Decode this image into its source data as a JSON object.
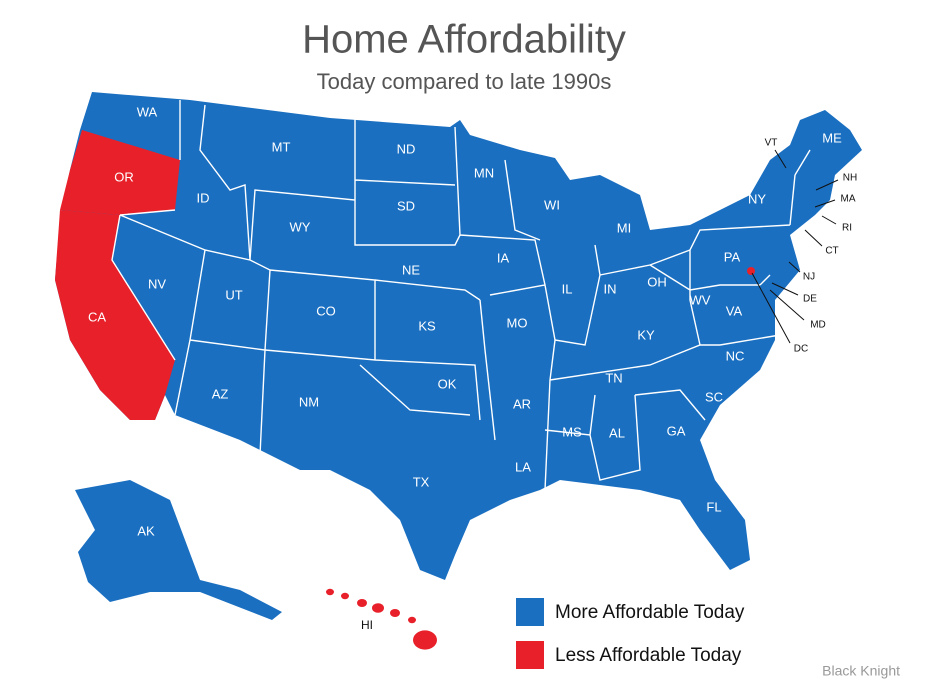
{
  "header": {
    "title": "Home Affordability",
    "subtitle": "Today compared to late 1990s"
  },
  "map": {
    "states": [
      {
        "label": "WA",
        "less_affordable": false
      },
      {
        "label": "OR",
        "less_affordable": true
      },
      {
        "label": "CA",
        "less_affordable": true
      },
      {
        "label": "NV",
        "less_affordable": false
      },
      {
        "label": "ID",
        "less_affordable": false
      },
      {
        "label": "MT",
        "less_affordable": false
      },
      {
        "label": "WY",
        "less_affordable": false
      },
      {
        "label": "UT",
        "less_affordable": false
      },
      {
        "label": "AZ",
        "less_affordable": false
      },
      {
        "label": "CO",
        "less_affordable": false
      },
      {
        "label": "NM",
        "less_affordable": false
      },
      {
        "label": "ND",
        "less_affordable": false
      },
      {
        "label": "SD",
        "less_affordable": false
      },
      {
        "label": "NE",
        "less_affordable": false
      },
      {
        "label": "KS",
        "less_affordable": false
      },
      {
        "label": "OK",
        "less_affordable": false
      },
      {
        "label": "TX",
        "less_affordable": false
      },
      {
        "label": "MN",
        "less_affordable": false
      },
      {
        "label": "IA",
        "less_affordable": false
      },
      {
        "label": "MO",
        "less_affordable": false
      },
      {
        "label": "AR",
        "less_affordable": false
      },
      {
        "label": "LA",
        "less_affordable": false
      },
      {
        "label": "WI",
        "less_affordable": false
      },
      {
        "label": "IL",
        "less_affordable": false
      },
      {
        "label": "MS",
        "less_affordable": false
      },
      {
        "label": "MI",
        "less_affordable": false
      },
      {
        "label": "IN",
        "less_affordable": false
      },
      {
        "label": "OH",
        "less_affordable": false
      },
      {
        "label": "KY",
        "less_affordable": false
      },
      {
        "label": "TN",
        "less_affordable": false
      },
      {
        "label": "AL",
        "less_affordable": false
      },
      {
        "label": "GA",
        "less_affordable": false
      },
      {
        "label": "FL",
        "less_affordable": false
      },
      {
        "label": "SC",
        "less_affordable": false
      },
      {
        "label": "NC",
        "less_affordable": false
      },
      {
        "label": "VA",
        "less_affordable": false
      },
      {
        "label": "WV",
        "less_affordable": false
      },
      {
        "label": "PA",
        "less_affordable": false
      },
      {
        "label": "NY",
        "less_affordable": false
      },
      {
        "label": "VT",
        "less_affordable": false
      },
      {
        "label": "NH",
        "less_affordable": false
      },
      {
        "label": "MA",
        "less_affordable": false
      },
      {
        "label": "RI",
        "less_affordable": false
      },
      {
        "label": "CT",
        "less_affordable": false
      },
      {
        "label": "NJ",
        "less_affordable": false
      },
      {
        "label": "DE",
        "less_affordable": false
      },
      {
        "label": "MD",
        "less_affordable": false
      },
      {
        "label": "DC",
        "less_affordable": true
      },
      {
        "label": "ME",
        "less_affordable": false
      },
      {
        "label": "AK",
        "less_affordable": false
      },
      {
        "label": "HI",
        "less_affordable": true
      }
    ]
  },
  "legend": [
    {
      "label": "More Affordable Today",
      "color": "#1a6fc1"
    },
    {
      "label": "Less Affordable Today",
      "color": "#e8202a"
    }
  ],
  "source": "Black Knight"
}
